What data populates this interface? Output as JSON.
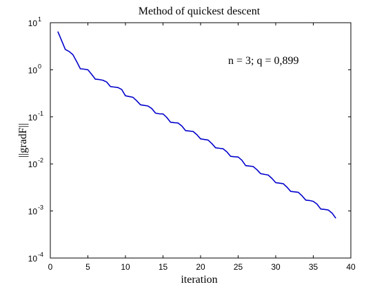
{
  "chart_data": {
    "type": "line",
    "title": "Method of quickest descent",
    "xlabel": "iteration",
    "ylabel": "||gradF||",
    "annotation": "n = 3; q = 0,899",
    "xlim": [
      0,
      40
    ],
    "ylim": [
      0.0001,
      10
    ],
    "yscale": "log",
    "grid": false,
    "legend": "none",
    "x_ticks": [
      0,
      5,
      10,
      15,
      20,
      25,
      30,
      35,
      40
    ],
    "y_ticks": [
      {
        "value": 10,
        "base": "10",
        "exp": "1"
      },
      {
        "value": 1,
        "base": "10",
        "exp": "0"
      },
      {
        "value": 0.1,
        "base": "10",
        "exp": "-1"
      },
      {
        "value": 0.01,
        "base": "10",
        "exp": "-2"
      },
      {
        "value": 0.001,
        "base": "10",
        "exp": "-3"
      },
      {
        "value": 0.0001,
        "base": "10",
        "exp": "-4"
      }
    ],
    "line_color": "#0000cc",
    "series": [
      {
        "x": [
          1,
          2,
          2.5,
          3,
          3.5,
          4,
          4.5,
          5,
          5.5,
          6,
          6.5,
          7,
          7.5,
          8,
          8.5,
          9,
          9.5,
          10,
          10.5,
          11,
          11.5,
          12,
          12.5,
          13,
          13.5,
          14,
          14.5,
          15,
          15.5,
          16,
          16.5,
          17,
          17.5,
          18,
          18.5,
          19,
          19.5,
          20,
          20.5,
          21,
          21.5,
          22,
          22.5,
          23,
          23.5,
          24,
          24.5,
          25,
          25.5,
          26,
          26.5,
          27,
          27.5,
          28,
          28.5,
          29,
          29.5,
          30,
          30.5,
          31,
          31.5,
          32,
          32.5,
          33,
          33.5,
          34,
          34.5,
          35,
          35.5,
          36,
          36.5,
          37,
          37.5,
          38
        ],
        "y": [
          6.5,
          2.7,
          2.45,
          2.1,
          1.5,
          1.05,
          1.03,
          1.0,
          0.8,
          0.63,
          0.62,
          0.6,
          0.55,
          0.44,
          0.43,
          0.42,
          0.38,
          0.28,
          0.27,
          0.26,
          0.22,
          0.18,
          0.175,
          0.17,
          0.15,
          0.12,
          0.116,
          0.115,
          0.097,
          0.077,
          0.075,
          0.074,
          0.064,
          0.051,
          0.05,
          0.049,
          0.042,
          0.034,
          0.033,
          0.032,
          0.027,
          0.022,
          0.0215,
          0.021,
          0.018,
          0.0145,
          0.0142,
          0.014,
          0.012,
          0.0092,
          0.009,
          0.0088,
          0.0075,
          0.0062,
          0.006,
          0.0058,
          0.0049,
          0.004,
          0.0039,
          0.0038,
          0.0032,
          0.0026,
          0.00255,
          0.0025,
          0.0021,
          0.0017,
          0.00167,
          0.0016,
          0.0014,
          0.0011,
          0.00108,
          0.00105,
          0.0009,
          0.0007
        ]
      }
    ]
  }
}
